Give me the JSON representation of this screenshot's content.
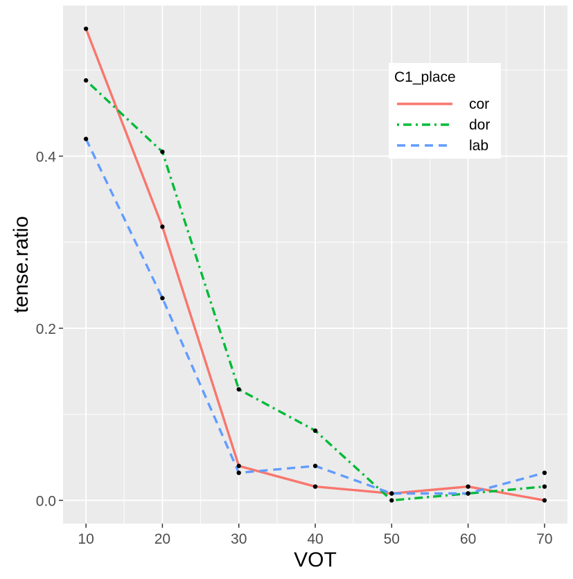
{
  "chart_data": {
    "type": "line",
    "title": "",
    "xlabel": "VOT",
    "ylabel": "tense.ratio",
    "x": [
      10,
      20,
      30,
      40,
      50,
      60,
      70
    ],
    "xlim": [
      7,
      73
    ],
    "ylim": [
      -0.027,
      0.575
    ],
    "x_ticks": [
      10,
      20,
      30,
      40,
      50,
      60,
      70
    ],
    "x_tick_labels": [
      "10",
      "20",
      "30",
      "40",
      "50",
      "60",
      "70"
    ],
    "y_ticks": [
      0.0,
      0.2,
      0.4
    ],
    "y_tick_labels": [
      "0.0",
      "0.2",
      "0.4"
    ],
    "grid": true,
    "legend": {
      "title": "C1_place",
      "position": "top-right"
    },
    "series": [
      {
        "name": "cor",
        "color": "#F8766D",
        "dash": "solid",
        "values": [
          0.548,
          0.318,
          0.04,
          0.016,
          0.008,
          0.016,
          0.0
        ]
      },
      {
        "name": "dor",
        "color": "#00BA38",
        "dash": "dotdash",
        "values": [
          0.488,
          0.405,
          0.129,
          0.081,
          0.0,
          0.008,
          0.016
        ]
      },
      {
        "name": "lab",
        "color": "#619CFF",
        "dash": "dashed",
        "values": [
          0.42,
          0.235,
          0.032,
          0.04,
          0.008,
          0.008,
          0.032
        ]
      }
    ]
  }
}
